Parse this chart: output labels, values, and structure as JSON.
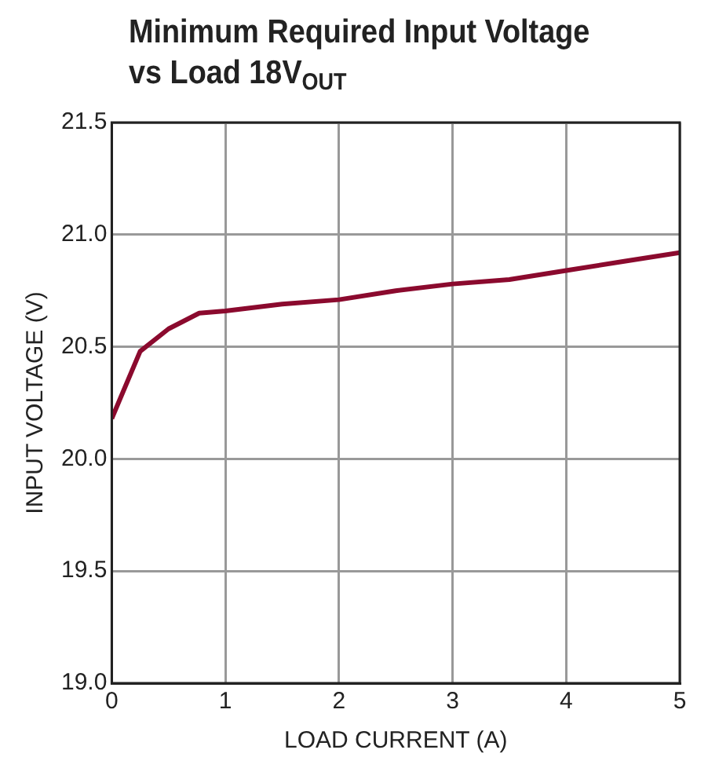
{
  "chart_data": {
    "type": "line",
    "title": "Minimum Required Input Voltage vs Load 18V$_{OUT}$",
    "xlabel": "LOAD CURRENT (A)",
    "ylabel": "INPUT VOLTAGE (V)",
    "series": [
      {
        "color": "#8b0a2e",
        "x": [
          0,
          0.25,
          0.5,
          0.77,
          1,
          1.5,
          2,
          2.5,
          3,
          3.5,
          4,
          4.5,
          5
        ],
        "values": [
          20.18,
          20.48,
          20.58,
          20.65,
          20.66,
          20.69,
          20.71,
          20.75,
          20.78,
          20.8,
          20.84,
          20.88,
          20.92
        ]
      }
    ],
    "xlim": [
      0,
      5
    ],
    "xticks": [
      0,
      1,
      2,
      3,
      4,
      5
    ],
    "ylim": [
      19.0,
      21.5
    ],
    "yticks": [
      {
        "value": 19,
        "label": "19.0"
      },
      {
        "value": 19.5,
        "label": "19.5"
      },
      {
        "value": 20,
        "label": "20.0"
      },
      {
        "value": 20.5,
        "label": "20.5"
      },
      {
        "value": 21,
        "label": "21.0"
      },
      {
        "value": 21.5,
        "label": "21.5"
      }
    ],
    "grid": true,
    "legend": false,
    "marker": "none",
    "line_style": "solid"
  }
}
